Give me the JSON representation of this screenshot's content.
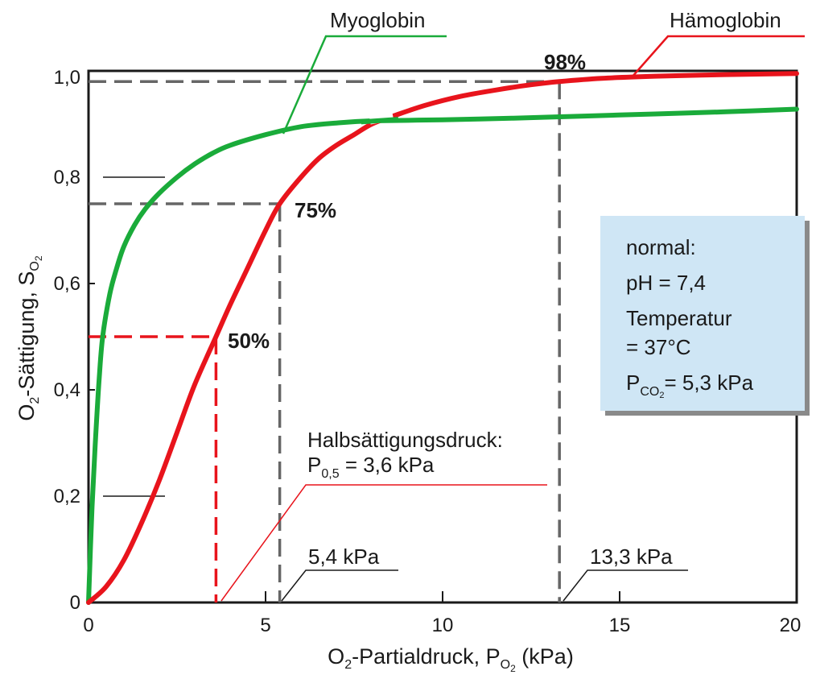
{
  "chart_data": {
    "type": "line",
    "xlim": [
      0,
      20
    ],
    "ylim": [
      0,
      1.0
    ],
    "x_ticks": [
      {
        "value": 0,
        "label": "0"
      },
      {
        "value": 5,
        "label": "5"
      },
      {
        "value": 10,
        "label": "10"
      },
      {
        "value": 15,
        "label": "15"
      },
      {
        "value": 20,
        "label": "20"
      }
    ],
    "y_ticks": [
      {
        "value": 0,
        "label": "0"
      },
      {
        "value": 0.2,
        "label": "0,2"
      },
      {
        "value": 0.4,
        "label": "0,4"
      },
      {
        "value": 0.6,
        "label": "0,6"
      },
      {
        "value": 0.8,
        "label": "0,8"
      },
      {
        "value": 1.0,
        "label": "1,0"
      }
    ],
    "xlabel": {
      "main": "O",
      "sub1": "2",
      "mid": "-Partialdruck, P",
      "sub2": "O",
      "sub3": "2",
      "end": " (kPa)"
    },
    "ylabel": {
      "main": "O",
      "sub1": "2",
      "mid": "-Sättigung, S",
      "sub2": "O",
      "sub3": "2"
    },
    "grid": false,
    "series": [
      {
        "name": "Myoglobin",
        "color": "#1aab3a",
        "x": [
          0,
          0.1,
          0.2,
          0.3,
          0.4,
          0.6,
          0.8,
          1.0,
          1.3,
          1.6,
          2.0,
          2.5,
          3.0,
          3.5,
          4.0,
          5.0,
          6.0,
          7.0,
          8.0,
          10.0,
          12.0,
          14.0,
          16.0,
          18.0,
          20.0
        ],
        "y": [
          0,
          0.18,
          0.31,
          0.42,
          0.5,
          0.58,
          0.63,
          0.67,
          0.71,
          0.74,
          0.77,
          0.8,
          0.825,
          0.845,
          0.86,
          0.88,
          0.895,
          0.902,
          0.906,
          0.908,
          0.911,
          0.915,
          0.919,
          0.923,
          0.928
        ]
      },
      {
        "name": "Hämoglobin",
        "color": "#e8141c",
        "x": [
          0,
          0.5,
          1.0,
          1.5,
          2.0,
          2.5,
          3.0,
          3.6,
          4.0,
          4.5,
          5.0,
          5.4,
          6.0,
          6.5,
          7.0,
          7.5,
          8.0,
          8.6,
          9.5,
          10.5,
          11.5,
          12.5,
          13.3,
          14.5,
          16.0,
          18.0,
          20.0
        ],
        "y": [
          0,
          0.03,
          0.08,
          0.15,
          0.23,
          0.32,
          0.41,
          0.5,
          0.56,
          0.63,
          0.7,
          0.75,
          0.8,
          0.835,
          0.86,
          0.88,
          0.9,
          0.915,
          0.935,
          0.952,
          0.964,
          0.974,
          0.98,
          0.986,
          0.99,
          0.993,
          0.995
        ]
      }
    ],
    "series_labels": {
      "myoglobin": "Myoglobin",
      "haemoglobin": "Hämoglobin"
    },
    "markers": [
      {
        "x": 3.6,
        "y": 0.5,
        "label": "50%",
        "color": "#e8141c"
      },
      {
        "x": 5.4,
        "y": 0.75,
        "label": "75%",
        "color": "#666666"
      },
      {
        "x": 13.3,
        "y": 0.98,
        "label": "98%",
        "color": "#666666"
      }
    ],
    "annotations": {
      "halbsaettigung_title": "Halbsättigungsdruck:",
      "halbsaettigung_p": "P",
      "halbsaettigung_sub": "0,5",
      "halbsaettigung_value": " = 3,6 kPa",
      "kpa_54": "5,4 kPa",
      "kpa_133": "13,3 kPa"
    },
    "info_box": {
      "line1": "normal:",
      "line2": "pH = 7,4",
      "line3": "Temperatur",
      "line4": "= 37°C",
      "line5_p": "P",
      "line5_sub1": "CO",
      "line5_sub2": "2",
      "line5_value": "= 5,3 kPa",
      "background": "#cfe6f5"
    }
  }
}
